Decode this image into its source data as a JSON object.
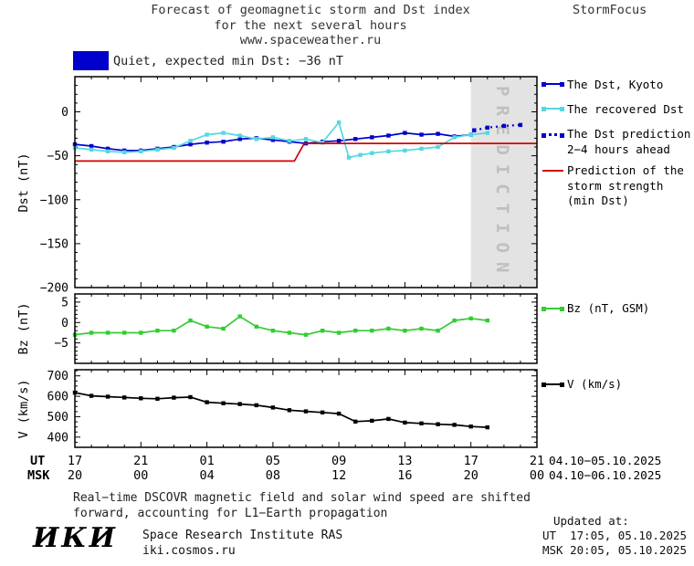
{
  "header": {
    "title_line1": "Forecast of geomagnetic storm and Dst index",
    "title_line2": "for the next several hours",
    "title_line3": "www.spaceweather.ru",
    "brand": "StormFocus"
  },
  "status": {
    "label": "Quiet, expected min Dst: −36 nT"
  },
  "colors": {
    "status_quiet": "#0000cc",
    "dst_kyoto": "#0000cc",
    "recovered_dst": "#55d7e2",
    "dst_prediction": "#0000cc",
    "storm_strength": "#d40000",
    "bz": "#33cc33",
    "v": "#000000",
    "prediction_band": "#e3e3e3",
    "prediction_band_text": "#bfbfbf"
  },
  "prediction_band_label": "PREDICTION",
  "legend": {
    "dst_kyoto": "The Dst, Kyoto",
    "recovered_dst": "The recovered Dst",
    "dst_prediction_line1": "The Dst prediction",
    "dst_prediction_line2": "2−4 hours ahead",
    "storm_strength_line1": "Prediction of the",
    "storm_strength_line2": "storm strength",
    "storm_strength_line3": "(min Dst)",
    "bz": "Bz (nT, GSM)",
    "v": "V (km/s)"
  },
  "xaxis": {
    "ut_prefix": "UT",
    "msk_prefix": "MSK",
    "tick_hours_offset": [
      0,
      4,
      8,
      12,
      16,
      20,
      24,
      28
    ],
    "ut_labels": [
      "17",
      "21",
      "01",
      "05",
      "09",
      "13",
      "17",
      "21"
    ],
    "msk_labels": [
      "20",
      "00",
      "04",
      "08",
      "12",
      "16",
      "20",
      "00"
    ],
    "ut_date_range": "04.10−05.10.2025",
    "msk_date_range": "04.10−06.10.2025"
  },
  "footer": {
    "note_line1": "Real−time DSCOVR magnetic field and solar wind speed are shifted",
    "note_line2": "forward, accounting for L1−Earth propagation"
  },
  "branding": {
    "logo": "ИКИ",
    "institute": "Space Research Institute RAS",
    "website": "iki.cosmos.ru"
  },
  "updated": {
    "label": "Updated at:",
    "ut": "UT  17:05, 05.10.2025",
    "msk": "MSK 20:05, 05.10.2025"
  },
  "chart_data": [
    {
      "id": "dst",
      "type": "line",
      "ylabel": "Dst (nT)",
      "ylim": [
        -200,
        40
      ],
      "yticks": [
        0,
        -50,
        -100,
        -150,
        -200
      ],
      "yminor_step": 10,
      "x_description": "hours since 17:00 UT 04.10.2025, axis spans 17:00 UT 04.10 to 21:00 UT 05.10",
      "prediction_band_hours_offset": [
        24,
        28
      ],
      "series": [
        {
          "key": "dst_kyoto",
          "name": "The Dst, Kyoto",
          "style": "solid",
          "markers": true,
          "x": [
            0,
            1,
            2,
            3,
            4,
            5,
            6,
            7,
            8,
            9,
            10,
            11,
            12,
            13,
            14,
            15,
            16,
            17,
            18,
            19,
            20,
            21,
            22,
            23,
            24
          ],
          "values": [
            -37,
            -39,
            -42,
            -44,
            -44,
            -42,
            -40,
            -37,
            -35,
            -34,
            -31,
            -30,
            -32,
            -34,
            -36,
            -34,
            -33,
            -31,
            -29,
            -27,
            -24,
            -26,
            -25,
            -28,
            -26
          ]
        },
        {
          "key": "recovered_dst",
          "name": "The recovered Dst",
          "style": "solid",
          "markers": true,
          "x": [
            0,
            1,
            2,
            3,
            4,
            5,
            6,
            7,
            8,
            9,
            10,
            11,
            12,
            13,
            14,
            15,
            16,
            16.6,
            17.3,
            18,
            19,
            20,
            21,
            22,
            23,
            24,
            25
          ],
          "values": [
            -41,
            -43,
            -45,
            -46,
            -45,
            -43,
            -41,
            -33,
            -26,
            -24,
            -27,
            -31,
            -29,
            -33,
            -31,
            -35,
            -12,
            -52,
            -49,
            -47,
            -45,
            -44,
            -42,
            -40,
            -29,
            -26,
            -24
          ]
        },
        {
          "key": "dst_prediction",
          "name": "The Dst prediction 2−4 hours ahead",
          "style": "dotted",
          "markers": true,
          "x": [
            24.2,
            25,
            26,
            27
          ],
          "values": [
            -21,
            -18,
            -16,
            -15
          ]
        },
        {
          "key": "storm_strength",
          "name": "Prediction of the storm strength (min Dst)",
          "style": "solid",
          "markers": false,
          "x": [
            0,
            13.3,
            13.9,
            28
          ],
          "values": [
            -56,
            -56,
            -36,
            -36
          ]
        }
      ]
    },
    {
      "id": "bz",
      "type": "line",
      "ylabel": "Bz (nT)",
      "ylim": [
        -10,
        7
      ],
      "yticks": [
        5,
        0,
        -5
      ],
      "yminor_step": 1,
      "series": [
        {
          "key": "bz",
          "name": "Bz (nT, GSM)",
          "style": "solid",
          "markers": true,
          "x": [
            0,
            1,
            2,
            3,
            4,
            5,
            6,
            7,
            8,
            9,
            10,
            11,
            12,
            13,
            14,
            15,
            16,
            17,
            18,
            19,
            20,
            21,
            22,
            23,
            24,
            25
          ],
          "values": [
            -3,
            -2.5,
            -2.5,
            -2.5,
            -2.5,
            -2,
            -2,
            0.5,
            -1,
            -1.5,
            1.5,
            -1,
            -2,
            -2.5,
            -3,
            -2,
            -2.5,
            -2,
            -2,
            -1.5,
            -2,
            -1.5,
            -2,
            0.5,
            1,
            0.5
          ]
        }
      ]
    },
    {
      "id": "v",
      "type": "line",
      "ylabel": "V (km/s)",
      "ylim": [
        350,
        730
      ],
      "yticks": [
        700,
        600,
        500,
        400
      ],
      "yminor_step": 25,
      "series": [
        {
          "key": "v",
          "name": "V (km/s)",
          "style": "solid",
          "markers": true,
          "x": [
            0,
            1,
            2,
            3,
            4,
            5,
            6,
            7,
            8,
            9,
            10,
            11,
            12,
            13,
            14,
            15,
            16,
            17,
            18,
            19,
            20,
            21,
            22,
            23,
            24,
            25
          ],
          "values": [
            618,
            602,
            598,
            594,
            590,
            588,
            593,
            596,
            571,
            566,
            562,
            556,
            545,
            532,
            526,
            521,
            515,
            476,
            480,
            489,
            471,
            467,
            463,
            460,
            452,
            448
          ]
        }
      ]
    }
  ]
}
